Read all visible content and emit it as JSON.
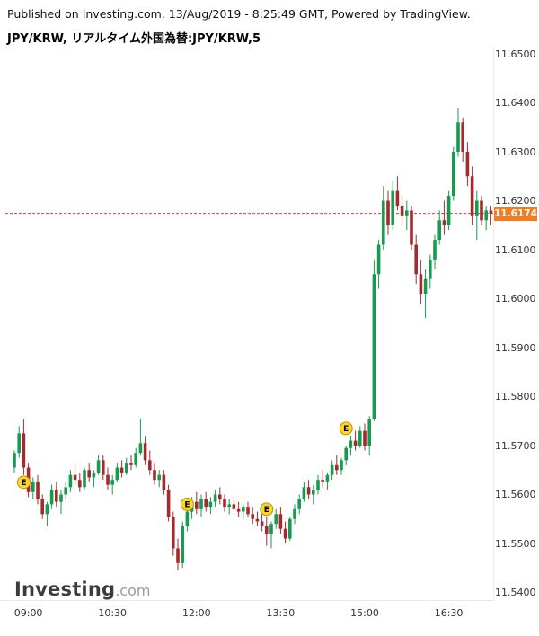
{
  "header": {
    "published_line": "Published on Investing.com, 13/Aug/2019 - 8:25:49 GMT, Powered by TradingView."
  },
  "title": "JPY/KRW, リアルタイム外国為替:JPY/KRW,5",
  "watermark": {
    "main": "Investing",
    "suffix": ".com"
  },
  "last_price": {
    "value": "11.6174"
  },
  "colors": {
    "up": "#169b4f",
    "down": "#a32a2e",
    "last_price_line": "#e23b2e",
    "last_price_badge_bg": "#f47c20",
    "marker_fill": "#ffd628",
    "marker_border": "#b79512",
    "marker_text": "#000000"
  },
  "axis": {
    "price_ticks": [
      "11.6500",
      "11.6400",
      "11.6300",
      "11.6200",
      "11.6100",
      "11.6000",
      "11.5900",
      "11.5800",
      "11.5700",
      "11.5600",
      "11.5500",
      "11.5400"
    ],
    "time_ticks": [
      {
        "label": "09:00",
        "index": 3
      },
      {
        "label": "10:30",
        "index": 21
      },
      {
        "label": "12:00",
        "index": 39
      },
      {
        "label": "13:30",
        "index": 57
      },
      {
        "label": "15:00",
        "index": 75
      },
      {
        "label": "16:30",
        "index": 93
      }
    ]
  },
  "chart_data": {
    "type": "candlestick",
    "title": "JPY/KRW, リアルタイム外国為替:JPY/KRW,5",
    "symbol": "JPY/KRW",
    "interval_minutes": 5,
    "start_time": "08:45",
    "step_minutes": 5,
    "ylim": [
      11.54,
      11.65
    ],
    "y_tick_step": 0.01,
    "last_price": 11.6174,
    "grid": false,
    "legend": false,
    "candles": [
      [
        11.5655,
        11.569,
        11.5645,
        11.5685
      ],
      [
        11.5685,
        11.574,
        11.5675,
        11.5725
      ],
      [
        11.5725,
        11.5755,
        11.564,
        11.5655
      ],
      [
        11.5655,
        11.5665,
        11.5595,
        11.5605
      ],
      [
        11.5605,
        11.5635,
        11.559,
        11.5625
      ],
      [
        11.5625,
        11.564,
        11.558,
        11.559
      ],
      [
        11.559,
        11.56,
        11.555,
        11.556
      ],
      [
        11.556,
        11.5585,
        11.5535,
        11.558
      ],
      [
        11.558,
        11.562,
        11.557,
        11.561
      ],
      [
        11.561,
        11.5625,
        11.5575,
        11.5585
      ],
      [
        11.5585,
        11.561,
        11.556,
        11.56
      ],
      [
        11.56,
        11.5625,
        11.559,
        11.5615
      ],
      [
        11.5615,
        11.565,
        11.5605,
        11.564
      ],
      [
        11.564,
        11.566,
        11.562,
        11.563
      ],
      [
        11.563,
        11.5645,
        11.5605,
        11.5615
      ],
      [
        11.5615,
        11.5655,
        11.561,
        11.565
      ],
      [
        11.565,
        11.5665,
        11.5625,
        11.5635
      ],
      [
        11.5635,
        11.565,
        11.5615,
        11.5645
      ],
      [
        11.5645,
        11.568,
        11.564,
        11.567
      ],
      [
        11.567,
        11.568,
        11.563,
        11.564
      ],
      [
        11.564,
        11.5655,
        11.561,
        11.562
      ],
      [
        11.562,
        11.564,
        11.56,
        11.563
      ],
      [
        11.563,
        11.5665,
        11.5625,
        11.5655
      ],
      [
        11.5655,
        11.567,
        11.5635,
        11.5645
      ],
      [
        11.5645,
        11.5675,
        11.564,
        11.5665
      ],
      [
        11.5665,
        11.568,
        11.565,
        11.566
      ],
      [
        11.566,
        11.5695,
        11.5655,
        11.5685
      ],
      [
        11.5685,
        11.5755,
        11.568,
        11.5705
      ],
      [
        11.5705,
        11.572,
        11.566,
        11.567
      ],
      [
        11.567,
        11.569,
        11.564,
        11.565
      ],
      [
        11.565,
        11.5665,
        11.562,
        11.563
      ],
      [
        11.563,
        11.565,
        11.5615,
        11.564
      ],
      [
        11.564,
        11.565,
        11.56,
        11.561
      ],
      [
        11.561,
        11.562,
        11.5545,
        11.5555
      ],
      [
        11.5555,
        11.5565,
        11.5475,
        11.549
      ],
      [
        11.549,
        11.551,
        11.5445,
        11.546
      ],
      [
        11.546,
        11.5545,
        11.545,
        11.5535
      ],
      [
        11.5535,
        11.5575,
        11.5525,
        11.5565
      ],
      [
        11.5565,
        11.5595,
        11.555,
        11.5585
      ],
      [
        11.5585,
        11.5605,
        11.556,
        11.557
      ],
      [
        11.557,
        11.56,
        11.5555,
        11.559
      ],
      [
        11.559,
        11.5605,
        11.5565,
        11.5575
      ],
      [
        11.5575,
        11.5595,
        11.556,
        11.5585
      ],
      [
        11.5585,
        11.561,
        11.5575,
        11.56
      ],
      [
        11.56,
        11.5615,
        11.558,
        11.559
      ],
      [
        11.559,
        11.56,
        11.5565,
        11.5575
      ],
      [
        11.5575,
        11.559,
        11.556,
        11.558
      ],
      [
        11.558,
        11.5595,
        11.5565,
        11.557
      ],
      [
        11.557,
        11.5585,
        11.5555,
        11.5565
      ],
      [
        11.5565,
        11.558,
        11.555,
        11.5575
      ],
      [
        11.5575,
        11.5585,
        11.5555,
        11.556
      ],
      [
        11.556,
        11.5575,
        11.554,
        11.555
      ],
      [
        11.555,
        11.5565,
        11.5535,
        11.5545
      ],
      [
        11.5545,
        11.556,
        11.5525,
        11.5535
      ],
      [
        11.5535,
        11.5555,
        11.5495,
        11.552
      ],
      [
        11.552,
        11.5545,
        11.549,
        11.554
      ],
      [
        11.554,
        11.557,
        11.553,
        11.556
      ],
      [
        11.556,
        11.5575,
        11.552,
        11.553
      ],
      [
        11.553,
        11.5545,
        11.55,
        11.551
      ],
      [
        11.551,
        11.5555,
        11.5505,
        11.555
      ],
      [
        11.555,
        11.558,
        11.554,
        11.557
      ],
      [
        11.557,
        11.56,
        11.556,
        11.559
      ],
      [
        11.559,
        11.5625,
        11.5585,
        11.5615
      ],
      [
        11.5615,
        11.563,
        11.559,
        11.56
      ],
      [
        11.56,
        11.562,
        11.558,
        11.561
      ],
      [
        11.561,
        11.564,
        11.56,
        11.563
      ],
      [
        11.563,
        11.565,
        11.5615,
        11.5625
      ],
      [
        11.5625,
        11.5645,
        11.561,
        11.564
      ],
      [
        11.564,
        11.567,
        11.563,
        11.566
      ],
      [
        11.566,
        11.568,
        11.564,
        11.565
      ],
      [
        11.565,
        11.5675,
        11.564,
        11.567
      ],
      [
        11.567,
        11.57,
        11.566,
        11.5695
      ],
      [
        11.5695,
        11.572,
        11.568,
        11.571
      ],
      [
        11.571,
        11.573,
        11.569,
        11.57
      ],
      [
        11.57,
        11.574,
        11.5695,
        11.573
      ],
      [
        11.573,
        11.5745,
        11.569,
        11.57
      ],
      [
        11.57,
        11.576,
        11.568,
        11.5755
      ],
      [
        11.5755,
        11.608,
        11.575,
        11.605
      ],
      [
        11.605,
        11.612,
        11.602,
        11.611
      ],
      [
        11.611,
        11.623,
        11.61,
        11.62
      ],
      [
        11.62,
        11.622,
        11.613,
        11.615
      ],
      [
        11.615,
        11.624,
        11.614,
        11.622
      ],
      [
        11.622,
        11.625,
        11.618,
        11.619
      ],
      [
        11.619,
        11.621,
        11.615,
        11.617
      ],
      [
        11.617,
        11.62,
        11.614,
        11.618
      ],
      [
        11.618,
        11.619,
        11.61,
        11.611
      ],
      [
        11.611,
        11.613,
        11.603,
        11.605
      ],
      [
        11.605,
        11.608,
        11.599,
        11.601
      ],
      [
        11.601,
        11.606,
        11.596,
        11.604
      ],
      [
        11.604,
        11.609,
        11.602,
        11.608
      ],
      [
        11.608,
        11.613,
        11.606,
        11.612
      ],
      [
        11.612,
        11.618,
        11.611,
        11.616
      ],
      [
        11.616,
        11.62,
        11.613,
        11.615
      ],
      [
        11.615,
        11.622,
        11.614,
        11.621
      ],
      [
        11.621,
        11.631,
        11.62,
        11.63
      ],
      [
        11.63,
        11.639,
        11.629,
        11.636
      ],
      [
        11.636,
        11.637,
        11.628,
        11.63
      ],
      [
        11.63,
        11.632,
        11.623,
        11.625
      ],
      [
        11.625,
        11.627,
        11.615,
        11.617
      ],
      [
        11.617,
        11.622,
        11.612,
        11.62
      ],
      [
        11.62,
        11.621,
        11.615,
        11.616
      ],
      [
        11.616,
        11.619,
        11.614,
        11.618
      ],
      [
        11.618,
        11.619,
        11.615,
        11.6174
      ]
    ],
    "markers": [
      {
        "index": 2,
        "price": 11.5625,
        "label": "E"
      },
      {
        "index": 37,
        "price": 11.558,
        "label": "E"
      },
      {
        "index": 54,
        "price": 11.557,
        "label": "E"
      },
      {
        "index": 71,
        "price": 11.5735,
        "label": "E"
      }
    ]
  }
}
